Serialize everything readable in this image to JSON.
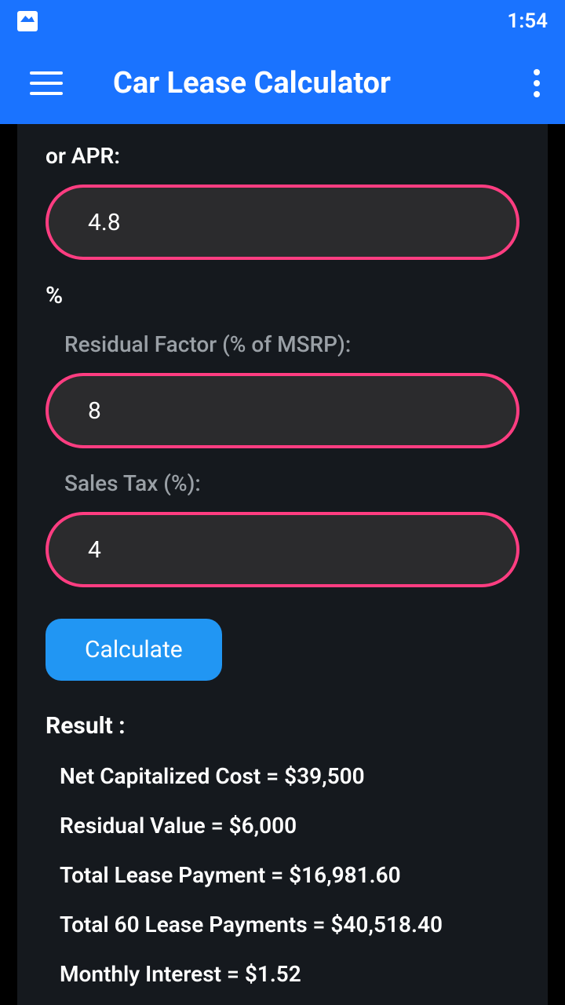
{
  "statusBar": {
    "time": "1:54"
  },
  "appBar": {
    "title": "Car Lease Calculator"
  },
  "form": {
    "aprLabel": "or APR:",
    "aprValue": "4.8",
    "percentSymbol": "%",
    "residualLabel": "Residual Factor (% of MSRP):",
    "residualValue": "8",
    "salesTaxLabel": "Sales Tax (%):",
    "salesTaxValue": "4",
    "calculateButton": "Calculate"
  },
  "result": {
    "heading": "Result :",
    "lines": [
      "Net Capitalized Cost = $39,500",
      "Residual Value = $6,000",
      "Total Lease Payment = $16,981.60",
      "Total 60 Lease Payments = $40,518.40",
      "Monthly Interest = $1.52"
    ]
  },
  "colors": {
    "primaryBlue": "#1a73ff",
    "buttonBlue": "#2196f3",
    "inputBorder": "#ff3d81",
    "inputBg": "#2b2b2d",
    "contentBg": "#15191e",
    "labelGray": "#9aa0a6"
  }
}
